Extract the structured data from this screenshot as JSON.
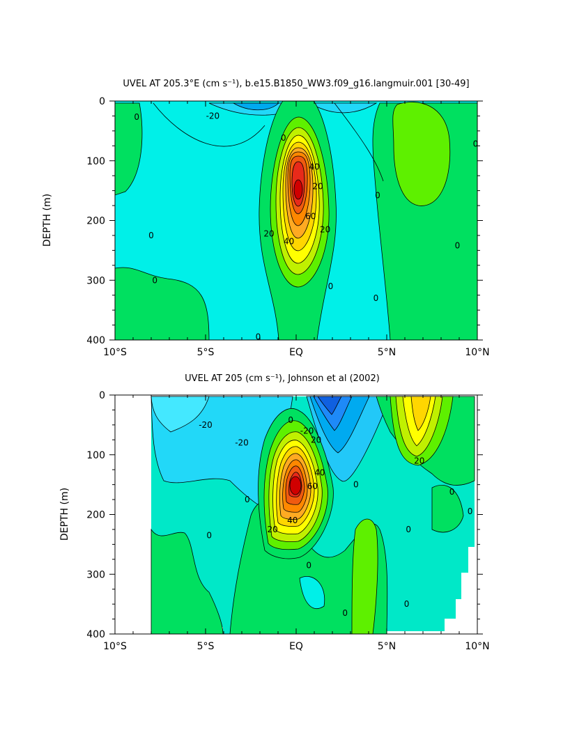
{
  "chart_data": [
    {
      "type": "contour",
      "title": "UVEL AT 205.3°E (cm s⁻¹), b.e15.B1850_WW3.f09_g16.langmuir.001 [30-49]",
      "ylabel": "DEPTH (m)",
      "xlabel": "",
      "x_ticks": [
        "10°S",
        "5°S",
        "EQ",
        "5°N",
        "10°N"
      ],
      "y_ticks": [
        "0",
        "100",
        "200",
        "300",
        "400"
      ],
      "xlim": [
        -10,
        10
      ],
      "ylim": [
        400,
        0
      ],
      "contour_levels": [
        -30,
        -20,
        -10,
        0,
        10,
        20,
        30,
        40,
        50,
        60,
        70
      ],
      "contour_labels": [
        {
          "text": "-20",
          "lat": -4.6,
          "depth": 25
        },
        {
          "text": "0",
          "lat": -8.8,
          "depth": 27
        },
        {
          "text": "0",
          "lat": -0.7,
          "depth": 62
        },
        {
          "text": "0",
          "lat": 9.9,
          "depth": 72
        },
        {
          "text": "40",
          "lat": 1.0,
          "depth": 110
        },
        {
          "text": "20",
          "lat": 1.2,
          "depth": 143
        },
        {
          "text": "0",
          "lat": 4.5,
          "depth": 158
        },
        {
          "text": "60",
          "lat": 0.8,
          "depth": 193
        },
        {
          "text": "20",
          "lat": -1.5,
          "depth": 222
        },
        {
          "text": "40",
          "lat": -0.4,
          "depth": 235
        },
        {
          "text": "20",
          "lat": 1.6,
          "depth": 215
        },
        {
          "text": "0",
          "lat": -8.0,
          "depth": 225
        },
        {
          "text": "0",
          "lat": 8.9,
          "depth": 242
        },
        {
          "text": "0",
          "lat": -7.8,
          "depth": 300
        },
        {
          "text": "0",
          "lat": 1.9,
          "depth": 310
        },
        {
          "text": "0",
          "lat": 4.4,
          "depth": 330
        },
        {
          "text": "0",
          "lat": -2.1,
          "depth": 395
        }
      ]
    },
    {
      "type": "contour",
      "title": "UVEL AT 205 (cm s⁻¹), Johnson et al (2002)",
      "ylabel": "DEPTH (m)",
      "xlabel": "",
      "x_ticks": [
        "10°S",
        "5°S",
        "EQ",
        "5°N",
        "10°N"
      ],
      "y_ticks": [
        "0",
        "100",
        "200",
        "300",
        "400"
      ],
      "xlim": [
        -10,
        10
      ],
      "ylim": [
        400,
        0
      ],
      "data_lat_range": [
        -8,
        9.9
      ],
      "contour_levels": [
        -40,
        -30,
        -20,
        -10,
        0,
        10,
        20,
        30,
        40,
        50,
        60,
        70
      ],
      "contour_labels": [
        {
          "text": "-20",
          "lat": -5.0,
          "depth": 50
        },
        {
          "text": "-20",
          "lat": -3.0,
          "depth": 80
        },
        {
          "text": "0",
          "lat": -0.3,
          "depth": 42
        },
        {
          "text": "-20",
          "lat": 0.6,
          "depth": 60
        },
        {
          "text": "20",
          "lat": 1.1,
          "depth": 75
        },
        {
          "text": "40",
          "lat": 1.3,
          "depth": 130
        },
        {
          "text": "60",
          "lat": 0.9,
          "depth": 153
        },
        {
          "text": "20",
          "lat": 6.8,
          "depth": 110
        },
        {
          "text": "0",
          "lat": 3.3,
          "depth": 150
        },
        {
          "text": "0",
          "lat": -2.7,
          "depth": 175
        },
        {
          "text": "0",
          "lat": 8.6,
          "depth": 162
        },
        {
          "text": "0",
          "lat": 9.6,
          "depth": 195
        },
        {
          "text": "40",
          "lat": -0.2,
          "depth": 210
        },
        {
          "text": "20",
          "lat": -1.3,
          "depth": 225
        },
        {
          "text": "0",
          "lat": 6.2,
          "depth": 225
        },
        {
          "text": "0",
          "lat": -4.8,
          "depth": 235
        },
        {
          "text": "0",
          "lat": 0.7,
          "depth": 285
        },
        {
          "text": "0",
          "lat": 6.1,
          "depth": 350
        },
        {
          "text": "0",
          "lat": 2.7,
          "depth": 365
        }
      ]
    }
  ]
}
